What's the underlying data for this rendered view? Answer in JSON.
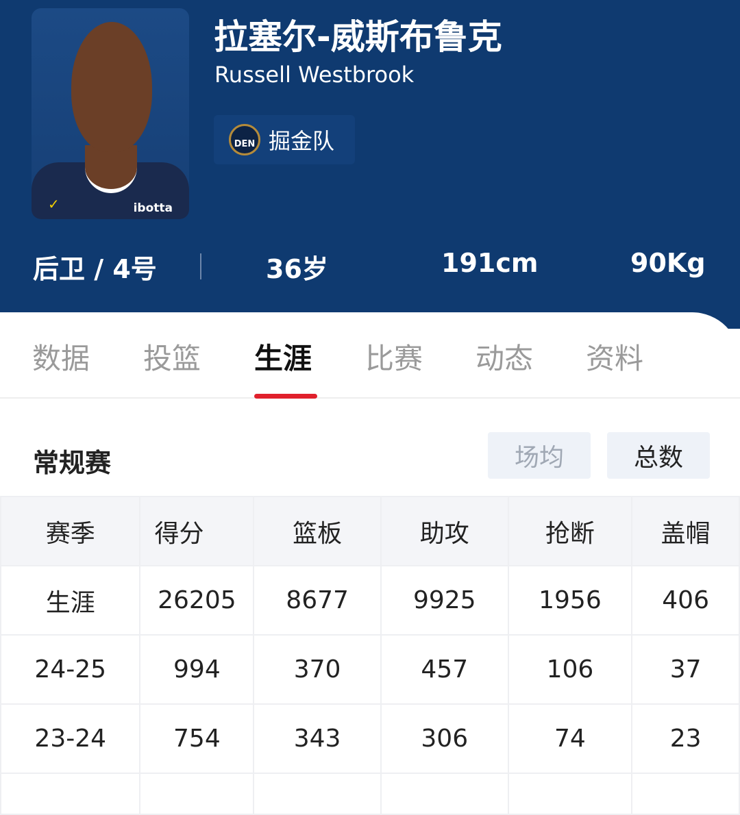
{
  "player": {
    "name_cn": "拉塞尔-威斯布鲁克",
    "name_en": "Russell Westbrook",
    "team": "掘金队",
    "team_logo_text": "DEN",
    "jersey_sponsor": "ibotta",
    "position_number": "后卫 / 4号",
    "age": "36岁",
    "height": "191cm",
    "weight": "90Kg"
  },
  "tabs": [
    "数据",
    "投篮",
    "生涯",
    "比赛",
    "动态",
    "资料"
  ],
  "active_tab": "生涯",
  "section": {
    "title": "常规赛",
    "toggle": [
      "场均",
      "总数"
    ],
    "active_toggle": "总数"
  },
  "table": {
    "headers": [
      "赛季",
      "得分",
      "篮板",
      "助攻",
      "抢断",
      "盖帽"
    ],
    "rows": [
      [
        "生涯",
        "26205",
        "8677",
        "9925",
        "1956",
        "406"
      ],
      [
        "24-25",
        "994",
        "370",
        "457",
        "106",
        "37"
      ],
      [
        "23-24",
        "754",
        "343",
        "306",
        "74",
        "23"
      ]
    ]
  },
  "colors": {
    "header": "#0f3a70",
    "accent": "#e0202c"
  }
}
